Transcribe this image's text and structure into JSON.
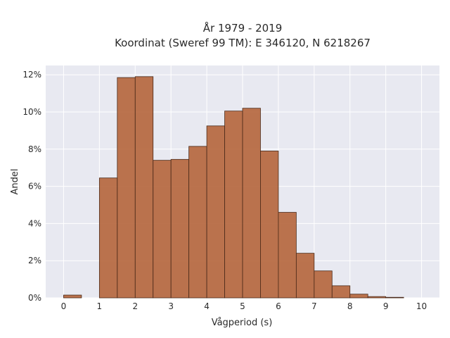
{
  "chart_data": {
    "type": "bar",
    "title_line1": "År 1979 - 2019",
    "title_line2": "Koordinat (Sweref 99 TM): E 346120, N 6218267",
    "xlabel": "Vågperiod (s)",
    "ylabel": "Andel",
    "bin_width": 0.5,
    "xlim": [
      -0.5,
      10.5
    ],
    "ylim": [
      0,
      12.5
    ],
    "x_ticks": [
      0,
      1,
      2,
      3,
      4,
      5,
      6,
      7,
      8,
      9,
      10
    ],
    "y_ticks": [
      0,
      2,
      4,
      6,
      8,
      10,
      12
    ],
    "y_tick_labels": [
      "0%",
      "2%",
      "4%",
      "6%",
      "8%",
      "10%",
      "12%"
    ],
    "bins": [
      {
        "start": 0.0,
        "value": 0.15
      },
      {
        "start": 1.0,
        "value": 6.45
      },
      {
        "start": 1.5,
        "value": 11.85
      },
      {
        "start": 2.0,
        "value": 11.9
      },
      {
        "start": 2.5,
        "value": 7.4
      },
      {
        "start": 3.0,
        "value": 7.45
      },
      {
        "start": 3.5,
        "value": 8.15
      },
      {
        "start": 4.0,
        "value": 9.25
      },
      {
        "start": 4.5,
        "value": 10.05
      },
      {
        "start": 5.0,
        "value": 10.2
      },
      {
        "start": 5.5,
        "value": 7.9
      },
      {
        "start": 6.0,
        "value": 4.6
      },
      {
        "start": 6.5,
        "value": 2.4
      },
      {
        "start": 7.0,
        "value": 1.45
      },
      {
        "start": 7.5,
        "value": 0.65
      },
      {
        "start": 8.0,
        "value": 0.2
      },
      {
        "start": 8.5,
        "value": 0.07
      },
      {
        "start": 9.0,
        "value": 0.03
      }
    ],
    "bar_color": "#b5653b",
    "bar_edge_color": "#4a2a1a",
    "plot_background": "#e8e9f1",
    "grid": true,
    "grid_color": "#ffffff"
  }
}
